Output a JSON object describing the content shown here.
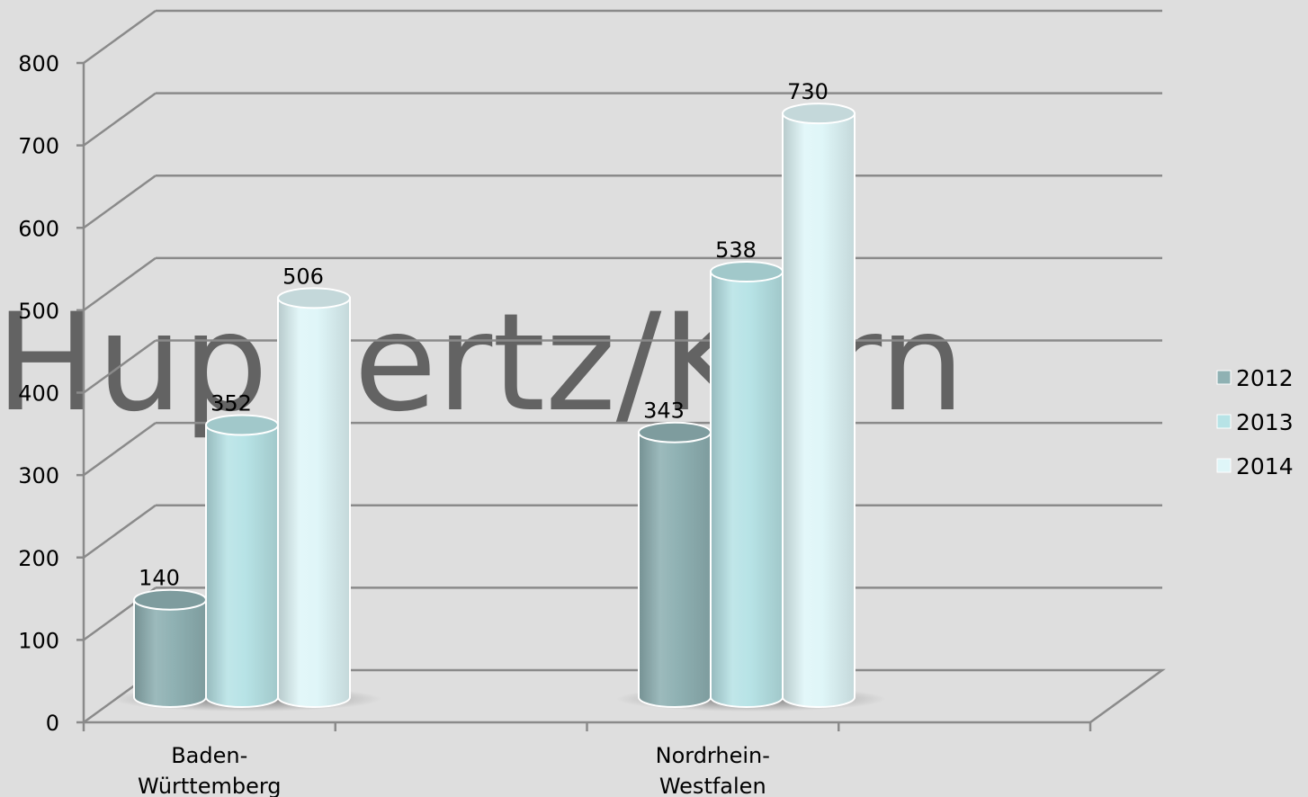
{
  "watermark": "Huppertz/Kern",
  "chart_data": {
    "type": "bar",
    "style": "3d-cylinder",
    "title": "",
    "xlabel": "",
    "ylabel": "",
    "ylim": [
      0,
      800
    ],
    "yticks": [
      "0",
      "100",
      "200",
      "300",
      "400",
      "500",
      "600",
      "700",
      "800"
    ],
    "categories": [
      [
        "Baden-",
        "Württemberg"
      ],
      [
        "Nordrhein-",
        "Westfalen"
      ]
    ],
    "series": [
      {
        "name": "2012",
        "values": [
          140,
          343
        ],
        "color": "#8fb1b3"
      },
      {
        "name": "2013",
        "values": [
          352,
          538
        ],
        "color": "#b7e3e6"
      },
      {
        "name": "2014",
        "values": [
          506,
          730
        ],
        "color": "#dff6f8"
      }
    ],
    "data_labels": true,
    "grid": true,
    "legend_position": "right"
  }
}
